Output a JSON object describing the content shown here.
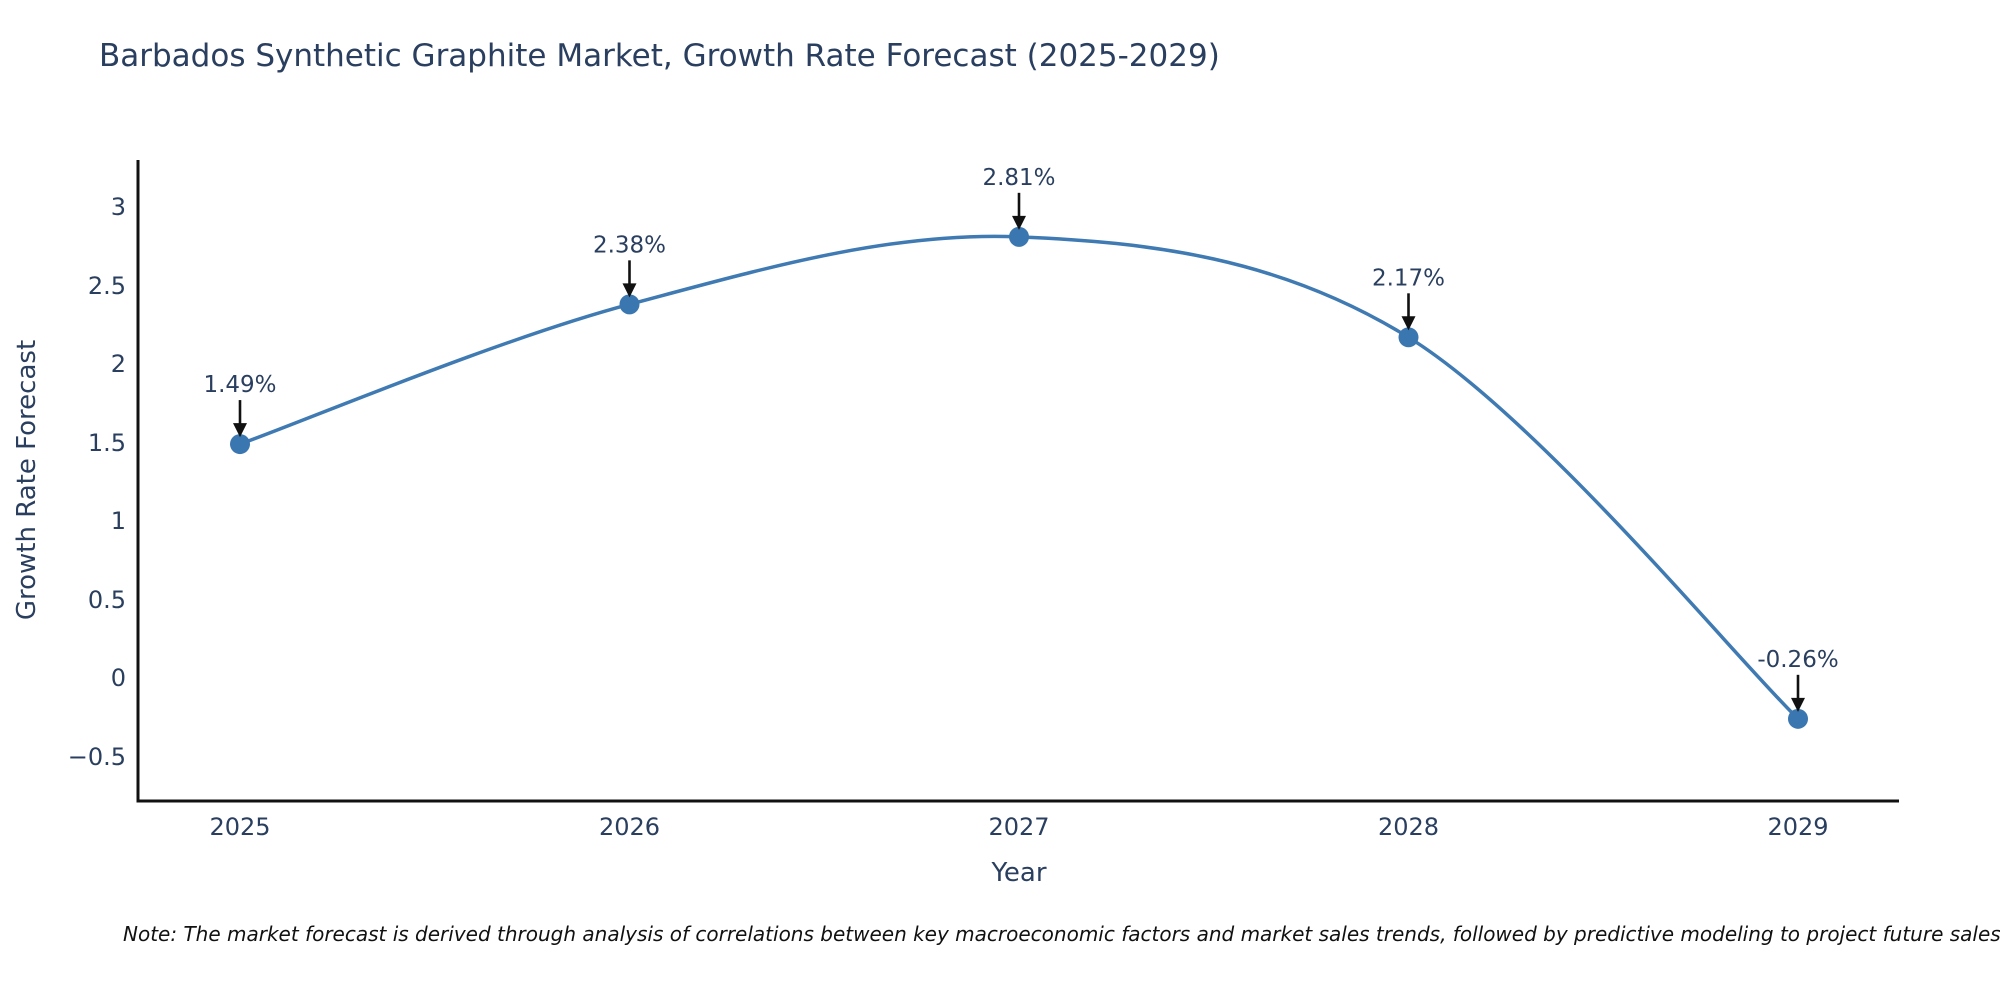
{
  "note": "Note: The market forecast is derived through analysis of correlations between key macroeconomic factors and market sales trends, followed by predictive modeling to project future sales",
  "chart_data": {
    "type": "line",
    "title": "Barbados Synthetic Graphite Market, Growth Rate Forecast (2025-2029)",
    "xlabel": "Year",
    "ylabel": "Growth Rate Forecast",
    "x": [
      2025,
      2026,
      2027,
      2028,
      2029
    ],
    "values": [
      1.49,
      2.38,
      2.81,
      2.17,
      -0.26
    ],
    "point_labels": [
      "1.49%",
      "2.38%",
      "2.81%",
      "2.17%",
      "-0.26%"
    ],
    "x_tick_labels": [
      "2025",
      "2026",
      "2027",
      "2028",
      "2029"
    ],
    "y_tick_values": [
      3,
      2.5,
      2,
      1.5,
      1,
      0.5,
      0,
      -0.5
    ],
    "y_tick_labels": [
      "3",
      "2.5",
      "2",
      "1.5",
      "1",
      "0.5",
      "0",
      "−0.5"
    ],
    "ylim": [
      -0.78,
      3.3
    ],
    "line_shape": "spline",
    "grid": false,
    "legend": "none",
    "annotations_arrows": true,
    "colors": {
      "line": "#3f7ab3",
      "marker": "#3a76af",
      "axis_line": "#111111",
      "text": "#2a3f5f",
      "annotation_arrow": "#111111",
      "note_text": "#111111",
      "background": "#ffffff"
    }
  }
}
